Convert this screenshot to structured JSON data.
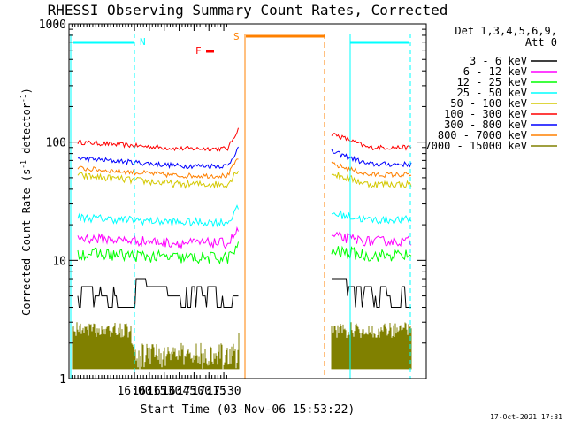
{
  "chart_data": {
    "type": "line",
    "title": "RHESSI Observing Summary Count Rates, Corrected",
    "xlabel": "Start Time (03-Nov-06 15:53:22)",
    "ylabel_main": "Corrected Count Rate (s",
    "ylabel_sup1": "-1",
    "ylabel_mid": " detector",
    "ylabel_sup2": "-1",
    "ylabel_end": ")",
    "footer": "17-Oct-2021 17:31",
    "y_scale": "log",
    "ylim": [
      1,
      1000
    ],
    "xlim_minutes": [
      15.5,
      21.5
    ],
    "x_ticks": [
      {
        "label": "16:00",
        "t": 16.6
      },
      {
        "label": "16:15",
        "t": 16.85
      },
      {
        "label": "16:30",
        "t": 17.1
      },
      {
        "label": "16:45",
        "t": 17.35
      },
      {
        "label": "17:00",
        "t": 17.6
      },
      {
        "label": "17:15",
        "t": 17.85
      },
      {
        "label": "17:30",
        "t": 18.1
      }
    ],
    "y_ticks": [
      {
        "label": "1000",
        "v": 1000
      },
      {
        "label": "100",
        "v": 100
      },
      {
        "label": "10",
        "v": 10
      },
      {
        "label": "1",
        "v": 1
      }
    ],
    "legend_header_1": "Det 1,3,4,5,6,9,",
    "legend_header_2": "Att 0",
    "legend_placement": "right",
    "series": [
      {
        "name": "3 - 6 keV",
        "color": "#000000"
      },
      {
        "name": "6 - 12 keV",
        "color": "#ff00ff"
      },
      {
        "name": "12 - 25 keV",
        "color": "#00ff00"
      },
      {
        "name": "25 - 50 keV",
        "color": "#00ffff"
      },
      {
        "name": "50 - 100 keV",
        "color": "#d4c800"
      },
      {
        "name": "100 - 300 keV",
        "color": "#ff0000"
      },
      {
        "name": "300 - 800 keV",
        "color": "#0000ff"
      },
      {
        "name": "800 - 7000 keV",
        "color": "#ff8000"
      },
      {
        "name": "7000 - 15000 keV",
        "color": "#808000"
      }
    ],
    "annotations": {
      "n_label": "N",
      "f_label": "F",
      "s_label": "S"
    }
  }
}
